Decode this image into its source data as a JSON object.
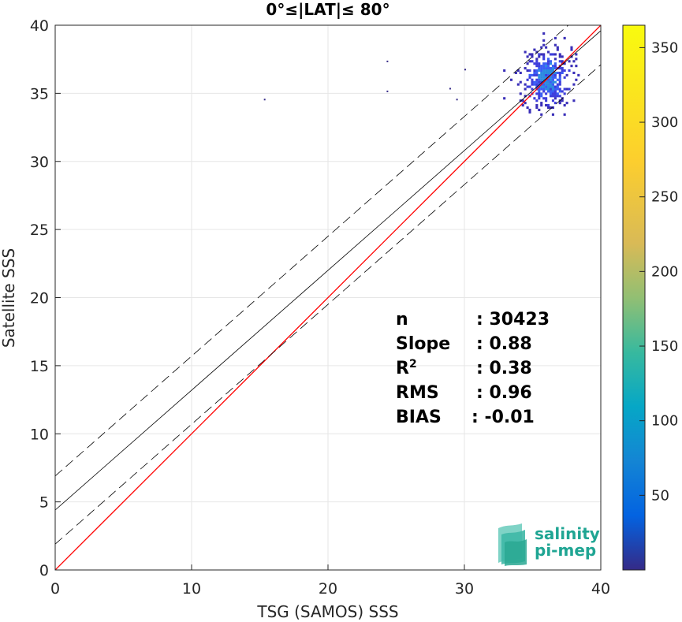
{
  "chart_data": {
    "type": "heatmap",
    "title": "0°≤|LAT|≤ 80°",
    "xlabel": "TSG (SAMOS) SSS",
    "ylabel": "Satellite SSS",
    "xlim": [
      0,
      40
    ],
    "ylim": [
      0,
      40
    ],
    "xticks": [
      "0",
      "10",
      "20",
      "30",
      "40"
    ],
    "yticks": [
      "0",
      "5",
      "10",
      "15",
      "20",
      "25",
      "30",
      "35",
      "40"
    ],
    "grid": true,
    "colorbar": {
      "range": [
        0,
        365
      ],
      "ticks": [
        "50",
        "100",
        "150",
        "200",
        "250",
        "300",
        "350"
      ],
      "colormap": "parula"
    },
    "lines": {
      "one_to_one": {
        "slope": 1,
        "intercept": 0,
        "color": "#ff0000"
      },
      "regression": {
        "slope": 0.88,
        "intercept": 4.4,
        "color": "#000000"
      },
      "upper_bound": {
        "slope": 0.88,
        "intercept": 6.9,
        "color": "#000000",
        "style": "dashed"
      },
      "lower_bound": {
        "slope": 0.88,
        "intercept": 1.9,
        "color": "#000000",
        "style": "dashed"
      }
    },
    "density_cluster": {
      "x_range": [
        32.5,
        38.5
      ],
      "y_range": [
        32.0,
        39.5
      ],
      "center": [
        36.0,
        36.0
      ]
    },
    "outliers": [
      [
        15.3,
        34.6
      ],
      [
        24.3,
        37.4
      ],
      [
        24.3,
        35.2
      ],
      [
        28.9,
        35.4
      ],
      [
        30.0,
        36.8
      ],
      [
        29.4,
        34.6
      ]
    ],
    "stats": [
      {
        "label": "n",
        "value": ": 30423"
      },
      {
        "label": "Slope",
        "value": ": 0.88"
      },
      {
        "label": "R",
        "sup": "2",
        "value": ": 0.38"
      },
      {
        "label": "RMS",
        "value": ": 0.96"
      },
      {
        "label": "BIAS",
        "value": ": -0.01"
      }
    ]
  },
  "logo": {
    "line1": "salinity",
    "line2": "pi-mep"
  }
}
